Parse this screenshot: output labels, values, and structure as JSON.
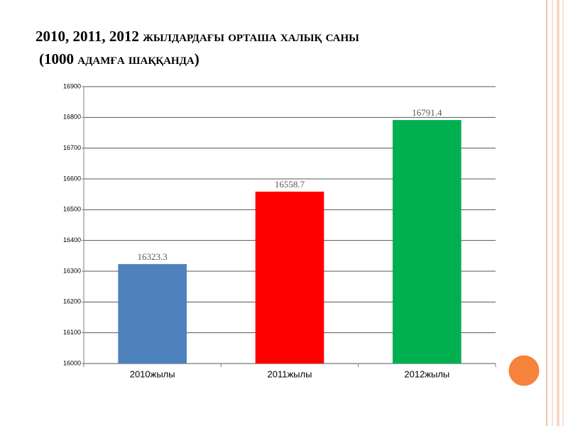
{
  "chart_data": {
    "type": "bar",
    "title": "2010, 2011, 2012 жылдардағы орташа халық саны",
    "subtitle": "(1000 адамға шаққанда)",
    "categories": [
      "2010жылы",
      "2011жылы",
      "2012жылы"
    ],
    "values": [
      16323.3,
      16558.7,
      16791.4
    ],
    "colors": [
      "#4f81bd",
      "#ff0000",
      "#00b050"
    ],
    "ylim": [
      16000,
      16900
    ],
    "yticks": [
      16000,
      16100,
      16200,
      16300,
      16400,
      16500,
      16600,
      16700,
      16800,
      16900
    ],
    "grid": true
  }
}
